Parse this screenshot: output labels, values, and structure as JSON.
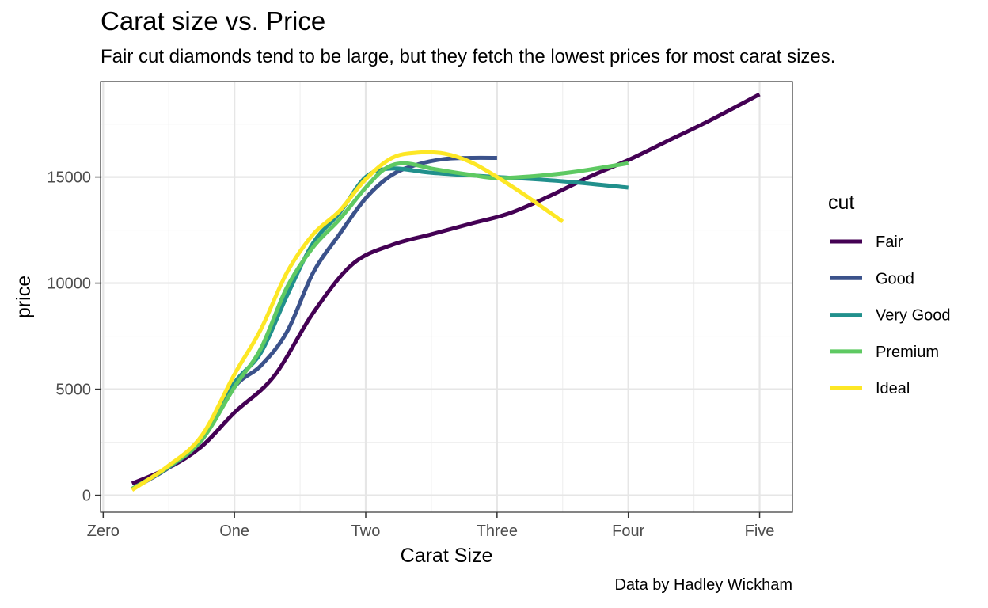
{
  "chart_data": {
    "type": "line",
    "title": "Carat size vs. Price",
    "subtitle": "Fair cut diamonds tend to be large, but they fetch the lowest prices for most carat sizes.",
    "caption": "Data by Hadley Wickham",
    "xlabel": "Carat Size",
    "ylabel": "price",
    "xlim": [
      -0.02,
      5.25
    ],
    "ylim": [
      -800,
      19500
    ],
    "x_ticks": [
      {
        "value": 0,
        "label": "Zero"
      },
      {
        "value": 1,
        "label": "One"
      },
      {
        "value": 2,
        "label": "Two"
      },
      {
        "value": 3,
        "label": "Three"
      },
      {
        "value": 4,
        "label": "Four"
      },
      {
        "value": 5,
        "label": "Five"
      }
    ],
    "y_ticks": [
      {
        "value": 0,
        "label": "0"
      },
      {
        "value": 5000,
        "label": "5000"
      },
      {
        "value": 10000,
        "label": "10000"
      },
      {
        "value": 15000,
        "label": "15000"
      }
    ],
    "grid": true,
    "legend": {
      "title": "cut",
      "position": "right"
    },
    "series": [
      {
        "name": "Fair",
        "color": "#440154",
        "x": [
          0.22,
          0.5,
          0.75,
          1.0,
          1.3,
          1.6,
          1.9,
          2.2,
          2.5,
          2.8,
          3.1,
          3.4,
          3.7,
          4.0,
          4.3,
          4.6,
          5.0
        ],
        "y": [
          550,
          1300,
          2300,
          3900,
          5600,
          8600,
          10900,
          11800,
          12300,
          12800,
          13300,
          14100,
          15000,
          15800,
          16700,
          17600,
          18900
        ]
      },
      {
        "name": "Good",
        "color": "#3b528b",
        "x": [
          0.22,
          0.5,
          0.75,
          1.0,
          1.2,
          1.4,
          1.6,
          1.8,
          2.0,
          2.2,
          2.4,
          2.6,
          2.8,
          3.0
        ],
        "y": [
          300,
          1300,
          2600,
          5100,
          6100,
          7700,
          10500,
          12300,
          14000,
          15100,
          15600,
          15850,
          15900,
          15900
        ]
      },
      {
        "name": "Very Good",
        "color": "#21908c",
        "x": [
          0.22,
          0.5,
          0.75,
          1.0,
          1.2,
          1.4,
          1.6,
          1.8,
          2.0,
          2.2,
          2.5,
          3.0,
          3.5,
          4.0
        ],
        "y": [
          300,
          1350,
          2700,
          5300,
          6700,
          9400,
          11900,
          13300,
          15000,
          15400,
          15200,
          15000,
          14800,
          14500
        ]
      },
      {
        "name": "Premium",
        "color": "#5ec962",
        "x": [
          0.22,
          0.5,
          0.75,
          1.0,
          1.2,
          1.4,
          1.6,
          1.8,
          2.0,
          2.15,
          2.3,
          2.5,
          2.8,
          3.0,
          3.3,
          3.6,
          4.0
        ],
        "y": [
          300,
          1350,
          2600,
          5100,
          6900,
          9800,
          11700,
          13000,
          14500,
          15400,
          15650,
          15400,
          15100,
          14950,
          15050,
          15250,
          15650
        ]
      },
      {
        "name": "Ideal",
        "color": "#fde725",
        "x": [
          0.22,
          0.5,
          0.75,
          1.0,
          1.2,
          1.4,
          1.6,
          1.8,
          2.0,
          2.2,
          2.4,
          2.6,
          2.8,
          3.0,
          3.2,
          3.5
        ],
        "y": [
          250,
          1400,
          2800,
          5700,
          7800,
          10500,
          12300,
          13400,
          14900,
          15900,
          16150,
          16100,
          15700,
          15000,
          14200,
          12900
        ]
      }
    ]
  }
}
